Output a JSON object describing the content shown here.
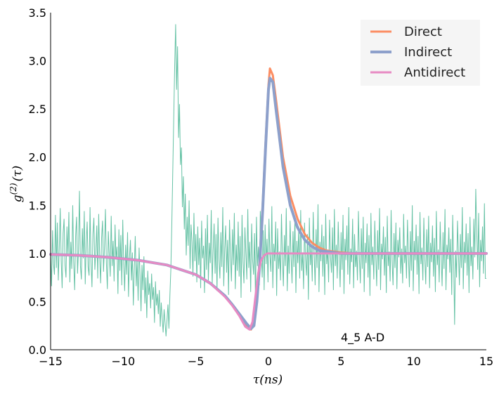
{
  "chart_data": {
    "type": "line",
    "xlabel": "τ(ns)",
    "ylabel_base": "g",
    "ylabel_sup": "(2)",
    "ylabel_arg": "(τ)",
    "xlim": [
      -15,
      15
    ],
    "ylim": [
      0,
      3.5
    ],
    "xticks": [
      -15,
      -10,
      -5,
      0,
      5,
      10,
      15
    ],
    "xtick_labels": [
      "−15",
      "−10",
      "−5",
      "0",
      "5",
      "10",
      "15"
    ],
    "yticks": [
      0,
      0.5,
      1,
      1.5,
      2,
      2.5,
      3,
      3.5
    ],
    "ytick_labels": [
      "0.0",
      "0.5",
      "1.0",
      "1.5",
      "2.0",
      "2.5",
      "3.0",
      "3.5"
    ],
    "grid": false,
    "legend_position": "top-right",
    "annotation": "4_5 A-D",
    "noise": {
      "color": "#66c2a5",
      "x_start": -15,
      "x_end": 15,
      "y": [
        1.0,
        0.66,
        1.24,
        0.89,
        0.78,
        1.4,
        0.85,
        1.32,
        0.72,
        1.05,
        1.47,
        0.93,
        0.64,
        1.21,
        1.36,
        0.88,
        0.75,
        1.28,
        0.97,
        1.43,
        0.7,
        1.12,
        0.84,
        1.5,
        0.91,
        0.62,
        1.18,
        1.38,
        0.79,
        1.04,
        1.65,
        0.87,
        0.73,
        1.26,
        0.95,
        1.44,
        0.68,
        1.1,
        1.33,
        0.86,
        0.77,
        1.48,
        0.92,
        0.65,
        1.2,
        1.37,
        0.83,
        1.02,
        1.29,
        0.74,
        1.41,
        0.96,
        0.69,
        1.16,
        1.34,
        0.81,
        1.06,
        1.46,
        0.9,
        0.63,
        1.23,
        0.99,
        0.76,
        1.39,
        0.87,
        1.13,
        0.71,
        1.3,
        0.94,
        1.07,
        0.58,
        1.25,
        0.82,
        1.19,
        0.67,
        1.35,
        0.89,
        0.61,
        1.09,
        0.78,
        1.22,
        0.55,
        0.96,
        1.14,
        0.72,
        1.01,
        0.46,
        0.84,
        1.18,
        0.66,
        0.93,
        0.51,
        1.06,
        0.77,
        0.4,
        0.88,
        0.62,
        0.97,
        0.48,
        0.75,
        0.33,
        0.82,
        0.57,
        0.69,
        0.43,
        0.79,
        0.52,
        0.65,
        0.28,
        0.71,
        0.46,
        0.58,
        0.37,
        0.62,
        0.24,
        0.49,
        0.33,
        0.18,
        0.42,
        0.28,
        0.14,
        0.31,
        0.47,
        0.22,
        0.56,
        0.83,
        1.3,
        1.85,
        2.4,
        2.95,
        3.38,
        2.7,
        3.15,
        2.2,
        2.55,
        1.92,
        2.1,
        1.48,
        1.8,
        1.25,
        1.62,
        0.98,
        1.38,
        1.08,
        1.55,
        0.84,
        1.3,
        1.12,
        0.76,
        1.42,
        0.92,
        1.2,
        0.7,
        1.28,
        0.88,
        1.16,
        0.64,
        1.34,
        0.95,
        1.08,
        0.59,
        1.26,
        0.83,
        1.4,
        0.72,
        1.11,
        0.9,
        1.45,
        0.68,
        1.03,
        1.31,
        0.79,
        1.2,
        0.61,
        1.37,
        0.94,
        0.74,
        1.22,
        0.86,
        1.48,
        0.66,
        1.05,
        1.29,
        0.8,
        1.14,
        0.57,
        1.35,
        0.97,
        0.71,
        1.25,
        0.88,
        1.42,
        0.63,
        1.09,
        0.82,
        1.33,
        0.76,
        1.18,
        0.54,
        1.4,
        0.91,
        0.69,
        1.27,
        1.0,
        0.73,
        1.46,
        0.85,
        1.12,
        0.6,
        1.31,
        0.93,
        0.78,
        1.21,
        0.5,
        1.38,
        0.87,
        1.07,
        0.67,
        1.44,
        0.96,
        0.75,
        1.24,
        0.62,
        1.3,
        0.89,
        1.15,
        0.7,
        1.36,
        0.98,
        0.81,
        1.49,
        0.64,
        1.1,
        0.92,
        1.33,
        0.56,
        1.26,
        0.84,
        1.02,
        0.72,
        1.41,
        0.95,
        0.66,
        1.19,
        0.87,
        1.47,
        0.61,
        1.08,
        0.79,
        1.34,
        0.97,
        0.69,
        1.23,
        0.86,
        1.39,
        0.59,
        1.13,
        0.9,
        1.28,
        0.74,
        1.45,
        0.82,
        1.01,
        0.63,
        1.32,
        0.94,
        0.77,
        1.2,
        0.52,
        1.37,
        0.88,
        1.06,
        0.71,
        1.43,
        0.99,
        0.67,
        1.25,
        0.85,
        1.51,
        0.6,
        1.12,
        0.92,
        1.3,
        0.76,
        1.18,
        0.57,
        1.41,
        0.89,
        1.04,
        0.7,
        1.35,
        0.96,
        0.8,
        1.27,
        0.62,
        1.46,
        0.87,
        1.09,
        0.74,
        1.33,
        0.98,
        0.65,
        1.22,
        0.83,
        1.4,
        0.58,
        1.15,
        0.93,
        1.29,
        0.78,
        1.48,
        0.68,
        1.05,
        0.91,
        1.36,
        0.64,
        1.2,
        0.86,
        1.03,
        0.72,
        1.44,
        0.95,
        0.69,
        1.26,
        0.84,
        1.38,
        0.6,
        1.11,
        0.9,
        1.31,
        0.75,
        1.19,
        0.56,
        1.42,
        0.88,
        1.07,
        0.73,
        1.34,
        0.97,
        0.66,
        1.24,
        0.83,
        1.47,
        0.62,
        1.1,
        0.94,
        1.28,
        0.77,
        1.17,
        0.59,
        1.39,
        0.87,
        1.02,
        0.71,
        1.45,
        0.92,
        0.67,
        1.21,
        0.85,
        1.32,
        0.63,
        1.14,
        0.96,
        1.27,
        0.79,
        1.05,
        0.69,
        1.41,
        0.9,
        1.08,
        0.74,
        1.35,
        0.98,
        0.65,
        1.23,
        0.82,
        1.5,
        0.61,
        1.13,
        0.93,
        1.3,
        0.78,
        1.18,
        0.58,
        1.43,
        0.89,
        1.06,
        0.72,
        1.37,
        0.95,
        0.68,
        1.25,
        0.86,
        1.39,
        0.64,
        1.11,
        0.91,
        1.29,
        0.76,
        1.16,
        0.6,
        1.44,
        0.88,
        1.04,
        0.7,
        1.33,
        0.97,
        0.66,
        1.22,
        0.84,
        1.46,
        0.62,
        1.09,
        0.94,
        1.27,
        0.8,
        1.15,
        0.57,
        1.4,
        0.92,
        0.26,
        1.03,
        0.75,
        1.34,
        0.99,
        0.67,
        1.2,
        0.85,
        1.48,
        0.63,
        1.12,
        0.9,
        1.31,
        0.77,
        1.21,
        0.59,
        1.38,
        0.87,
        1.07,
        0.73,
        1.36,
        0.96,
        1.67,
        1.24,
        0.83,
        1.42,
        0.65,
        1.14,
        0.92,
        1.28,
        0.79,
        1.52,
        0.74,
        0.74
      ]
    },
    "series": [
      {
        "name": "Direct",
        "color": "#fc8d62",
        "width": 3,
        "x": [
          -15,
          -13,
          -11,
          -9,
          -7,
          -5,
          -4,
          -3,
          -2.5,
          -2,
          -1.6,
          -1.2,
          -1.0,
          -0.8,
          -0.6,
          -0.4,
          -0.2,
          0,
          0.1,
          0.3,
          0.5,
          0.8,
          1.0,
          1.5,
          2.0,
          2.5,
          3.0,
          3.5,
          4.0,
          5.0,
          6.0,
          8.0,
          10.0,
          12.0,
          15.0
        ],
        "y": [
          0.99,
          0.98,
          0.96,
          0.93,
          0.88,
          0.78,
          0.69,
          0.56,
          0.47,
          0.36,
          0.25,
          0.21,
          0.3,
          0.55,
          0.95,
          1.5,
          2.15,
          2.75,
          2.92,
          2.85,
          2.62,
          2.25,
          2.0,
          1.6,
          1.36,
          1.2,
          1.11,
          1.06,
          1.03,
          1.01,
          1.0,
          1.0,
          1.0,
          1.0,
          1.0
        ]
      },
      {
        "name": "Indirect",
        "color": "#8da0cb",
        "width": 4,
        "x": [
          -15,
          -13,
          -11,
          -9,
          -7,
          -5,
          -4,
          -3,
          -2.5,
          -2,
          -1.5,
          -1.2,
          -1.0,
          -0.8,
          -0.6,
          -0.4,
          -0.2,
          0,
          0.1,
          0.3,
          0.5,
          0.8,
          1.0,
          1.5,
          2.0,
          2.5,
          3.0,
          3.5,
          4.0,
          5.0,
          6.0,
          8.0,
          10.0,
          12.0,
          15.0
        ],
        "y": [
          0.99,
          0.98,
          0.96,
          0.93,
          0.88,
          0.78,
          0.69,
          0.56,
          0.47,
          0.37,
          0.27,
          0.22,
          0.25,
          0.5,
          0.9,
          1.45,
          2.1,
          2.7,
          2.82,
          2.78,
          2.52,
          2.15,
          1.9,
          1.5,
          1.27,
          1.14,
          1.07,
          1.03,
          1.02,
          1.0,
          1.0,
          1.0,
          1.0,
          1.0,
          1.0
        ]
      },
      {
        "name": "Antidirect",
        "color": "#e78ac3",
        "width": 3,
        "x": [
          -15,
          -13,
          -11,
          -9,
          -7,
          -5,
          -4,
          -3,
          -2.5,
          -2,
          -1.6,
          -1.3,
          -1.1,
          -0.9,
          -0.7,
          -0.5,
          -0.3,
          -0.1,
          0.1,
          0.5,
          1.0,
          3.0,
          5.0,
          10.0,
          15.0
        ],
        "y": [
          0.99,
          0.98,
          0.96,
          0.93,
          0.88,
          0.78,
          0.69,
          0.55,
          0.46,
          0.35,
          0.24,
          0.21,
          0.29,
          0.55,
          0.8,
          0.93,
          0.98,
          1.0,
          1.0,
          1.0,
          1.0,
          1.0,
          1.0,
          1.0,
          1.0
        ]
      }
    ]
  }
}
